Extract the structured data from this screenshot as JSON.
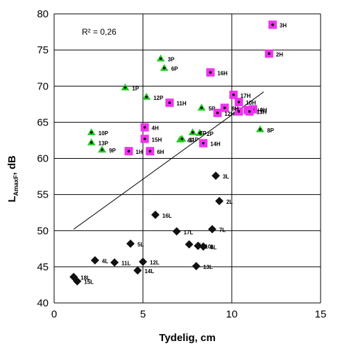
{
  "chart_data": {
    "type": "scatter",
    "title": "",
    "xlabel": "Tydelig, cm",
    "ylabel": "LAmaxF, dB",
    "ylabel_main": "L",
    "ylabel_sub": "AmaxF",
    "ylabel_unit": ", dB",
    "xlim": [
      0,
      15
    ],
    "ylim": [
      40,
      80
    ],
    "xticks": [
      "0",
      "5",
      "10",
      "15"
    ],
    "yticks": [
      "40",
      "45",
      "50",
      "55",
      "60",
      "65",
      "70",
      "75",
      "80"
    ],
    "grid": "horizontal and vertical",
    "annotation": "R² = 0,26",
    "trendline": {
      "x": [
        1.1,
        11.8
      ],
      "y": [
        50.2,
        69.2
      ]
    },
    "series": [
      {
        "marker": "triangle",
        "color": "#22cc22",
        "points": [
          {
            "label": "1P",
            "x": 4.0,
            "y": 69.8
          },
          {
            "label": "2P",
            "x": 8.2,
            "y": 63.5
          },
          {
            "label": "3P",
            "x": 6.0,
            "y": 73.8
          },
          {
            "label": "4P",
            "x": 7.1,
            "y": 62.6
          },
          {
            "label": "5P",
            "x": 8.3,
            "y": 67.0
          },
          {
            "label": "6P",
            "x": 6.2,
            "y": 72.5
          },
          {
            "label": "7P",
            "x": 7.8,
            "y": 63.6
          },
          {
            "label": "8P",
            "x": 11.6,
            "y": 64.0
          },
          {
            "label": "9P",
            "x": 2.7,
            "y": 61.2
          },
          {
            "label": "10P",
            "x": 2.1,
            "y": 63.6
          },
          {
            "label": "11P",
            "x": 7.2,
            "y": 62.7
          },
          {
            "label": "12P",
            "x": 5.2,
            "y": 68.5
          },
          {
            "label": "13P",
            "x": 2.1,
            "y": 62.2
          }
        ]
      },
      {
        "marker": "square",
        "color": "#ee33ee",
        "points": [
          {
            "label": "1H",
            "x": 4.2,
            "y": 61.0
          },
          {
            "label": "2H",
            "x": 12.1,
            "y": 74.5
          },
          {
            "label": "3H",
            "x": 12.3,
            "y": 78.5
          },
          {
            "label": "4H",
            "x": 5.1,
            "y": 64.3
          },
          {
            "label": "5H",
            "x": 10.4,
            "y": 66.5
          },
          {
            "label": "6H",
            "x": 5.4,
            "y": 61.0
          },
          {
            "label": "7H",
            "x": 10.9,
            "y": 66.7
          },
          {
            "label": "8H",
            "x": 9.6,
            "y": 67.0
          },
          {
            "label": "9H",
            "x": 11.2,
            "y": 66.8
          },
          {
            "label": "10H",
            "x": 10.4,
            "y": 67.8
          },
          {
            "label": "11H",
            "x": 6.5,
            "y": 67.7
          },
          {
            "label": "12H",
            "x": 9.2,
            "y": 66.3
          },
          {
            "label": "13H",
            "x": 11.0,
            "y": 66.5
          },
          {
            "label": "14H",
            "x": 8.4,
            "y": 62.1
          },
          {
            "label": "15H",
            "x": 5.1,
            "y": 62.7
          },
          {
            "label": "16H",
            "x": 8.8,
            "y": 71.9
          },
          {
            "label": "17H",
            "x": 10.1,
            "y": 68.8
          }
        ]
      },
      {
        "marker": "diamond",
        "color": "#111111",
        "points": [
          {
            "label": "1L",
            "x": 7.6,
            "y": 48.1
          },
          {
            "label": "2L",
            "x": 9.3,
            "y": 54.1
          },
          {
            "label": "3L",
            "x": 9.1,
            "y": 57.6
          },
          {
            "label": "4L",
            "x": 2.3,
            "y": 45.9
          },
          {
            "label": "5L",
            "x": 4.3,
            "y": 48.2
          },
          {
            "label": "7L",
            "x": 8.9,
            "y": 50.2
          },
          {
            "label": "8L",
            "x": 8.4,
            "y": 47.8
          },
          {
            "label": "10L",
            "x": 8.1,
            "y": 47.9
          },
          {
            "label": "11L",
            "x": 3.4,
            "y": 45.6
          },
          {
            "label": "12L",
            "x": 5.0,
            "y": 45.7
          },
          {
            "label": "13L",
            "x": 8.0,
            "y": 45.1
          },
          {
            "label": "14L",
            "x": 4.7,
            "y": 44.5
          },
          {
            "label": "15L",
            "x": 1.3,
            "y": 43.0
          },
          {
            "label": "16L",
            "x": 5.7,
            "y": 52.2
          },
          {
            "label": "17L",
            "x": 6.9,
            "y": 49.9
          },
          {
            "label": "18L",
            "x": 1.1,
            "y": 43.6
          }
        ]
      }
    ]
  }
}
